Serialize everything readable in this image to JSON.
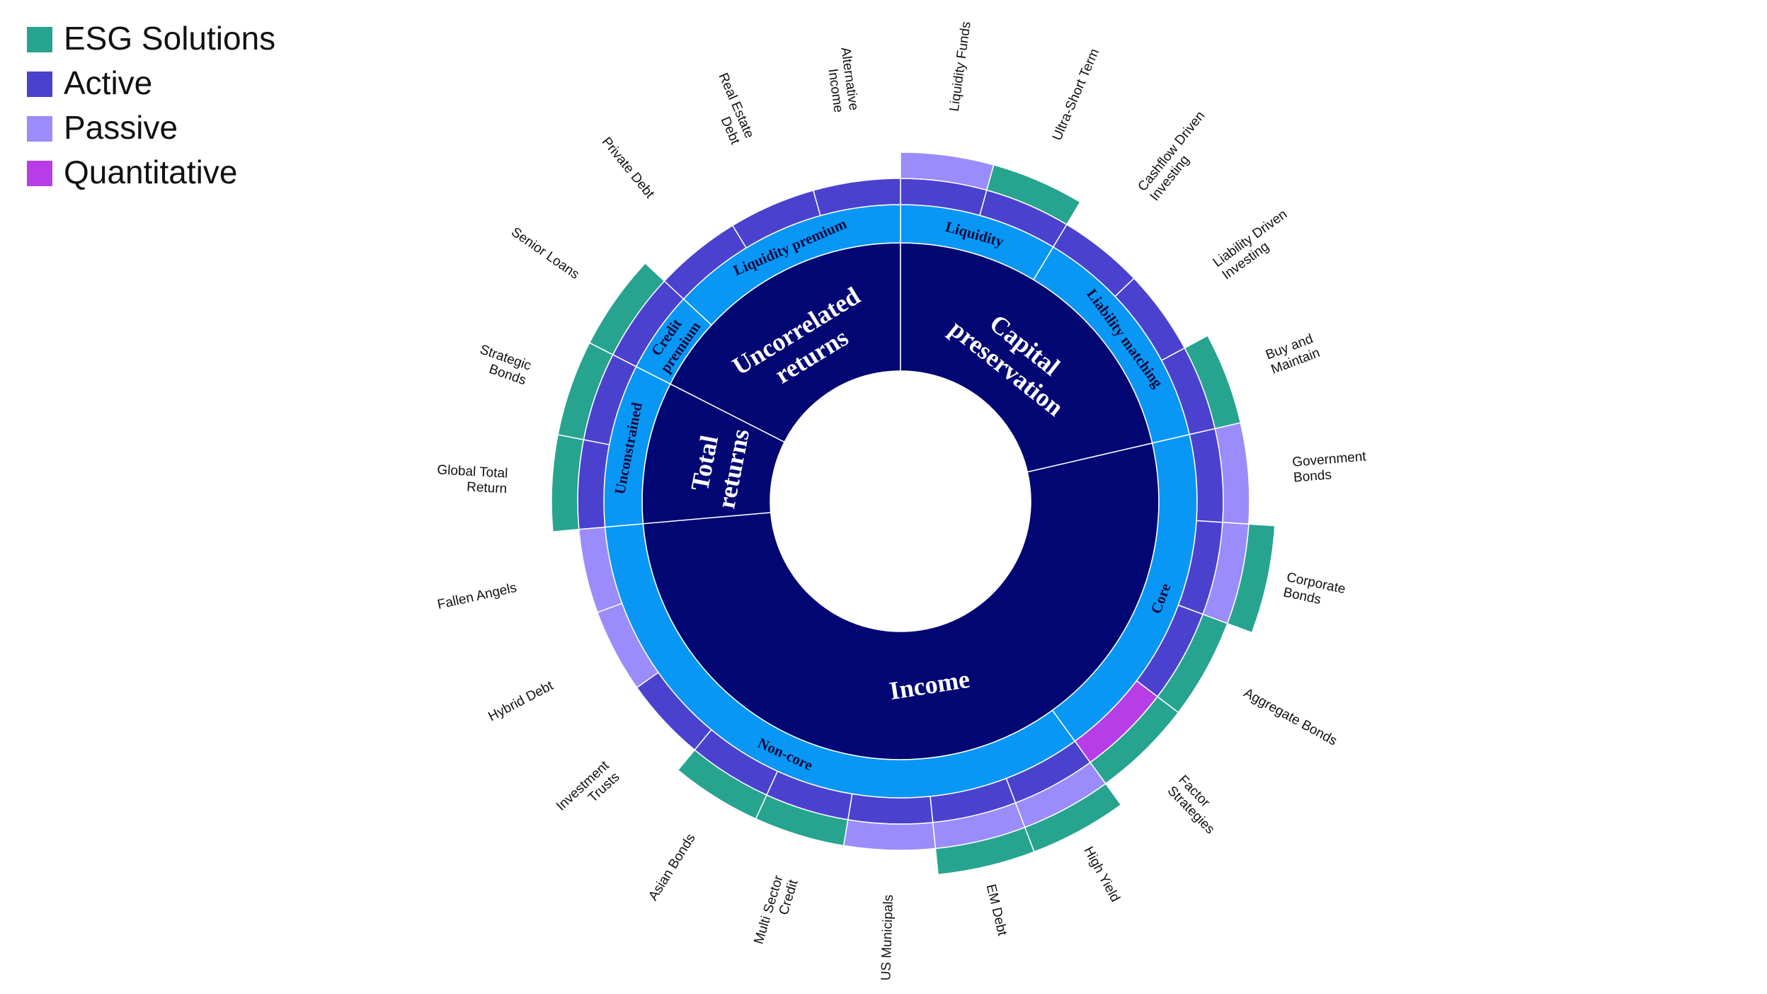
{
  "legend": [
    {
      "label": "ESG Solutions",
      "color": "#27a48f"
    },
    {
      "label": "Active",
      "color": "#4a42cf"
    },
    {
      "label": "Passive",
      "color": "#9b8cfb"
    },
    {
      "label": "Quantitative",
      "color": "#b73ee6"
    }
  ],
  "rings": {
    "level1_color": "#020773",
    "level2_color": "#0997f5"
  },
  "segments": [
    {
      "label": "Capital\npreservation",
      "children": [
        {
          "label": "Liquidity",
          "children": [
            {
              "label": "Liquidity Funds",
              "offerings": [
                "Active",
                "Passive"
              ]
            },
            {
              "label": "Ultra-Short Term",
              "offerings": [
                "Active",
                "ESG Solutions"
              ]
            }
          ]
        },
        {
          "label": "Liability matching",
          "children": [
            {
              "label": "Cashflow Driven\nInvesting",
              "offerings": [
                "Active"
              ]
            },
            {
              "label": "Liability Driven\nInvesting",
              "offerings": [
                "Active"
              ]
            },
            {
              "label": "Buy and\nMaintain",
              "offerings": [
                "Active",
                "ESG Solutions"
              ]
            }
          ]
        }
      ]
    },
    {
      "label": "Income",
      "children": [
        {
          "label": "Core",
          "children": [
            {
              "label": "Government\nBonds",
              "offerings": [
                "Active",
                "Passive"
              ]
            },
            {
              "label": "Corporate\nBonds",
              "offerings": [
                "Active",
                "Passive",
                "ESG Solutions"
              ]
            },
            {
              "label": "Aggregate Bonds",
              "offerings": [
                "Active",
                "ESG Solutions"
              ]
            },
            {
              "label": "Factor\nStrategies",
              "offerings": [
                "Quantitative",
                "ESG Solutions"
              ]
            }
          ]
        },
        {
          "label": "Non-core",
          "children": [
            {
              "label": "High Yield",
              "offerings": [
                "Active",
                "Passive",
                "ESG Solutions"
              ]
            },
            {
              "label": "EM Debt",
              "offerings": [
                "Active",
                "Passive",
                "ESG Solutions"
              ]
            },
            {
              "label": "US Municipals",
              "offerings": [
                "Active",
                "Passive"
              ]
            },
            {
              "label": "Multi Sector\nCredit",
              "offerings": [
                "Active",
                "ESG Solutions"
              ]
            },
            {
              "label": "Asian Bonds",
              "offerings": [
                "Active",
                "ESG Solutions"
              ]
            },
            {
              "label": "Investment\nTrusts",
              "offerings": [
                "Active"
              ]
            },
            {
              "label": "Hybrid Debt",
              "offerings": [
                "Passive"
              ]
            },
            {
              "label": "Fallen Angels",
              "offerings": [
                "Passive"
              ]
            }
          ]
        }
      ]
    },
    {
      "label": "Total\nreturns",
      "children": [
        {
          "label": "Unconstrained",
          "children": [
            {
              "label": "Global Total\nReturn",
              "offerings": [
                "Active",
                "ESG Solutions"
              ]
            },
            {
              "label": "Strategic\nBonds",
              "offerings": [
                "Active",
                "ESG Solutions"
              ]
            }
          ]
        }
      ]
    },
    {
      "label": "Uncorrelated\nreturns",
      "children": [
        {
          "label": "Credit\npremium",
          "children": [
            {
              "label": "Senior Loans",
              "offerings": [
                "Active",
                "ESG Solutions"
              ]
            }
          ]
        },
        {
          "label": "Liquidity premium",
          "children": [
            {
              "label": "Private Debt",
              "offerings": [
                "Active"
              ]
            },
            {
              "label": "Real Estate\nDebt",
              "offerings": [
                "Active"
              ]
            },
            {
              "label": "Alternative\nIncome",
              "offerings": [
                "Active"
              ]
            }
          ]
        }
      ]
    }
  ]
}
